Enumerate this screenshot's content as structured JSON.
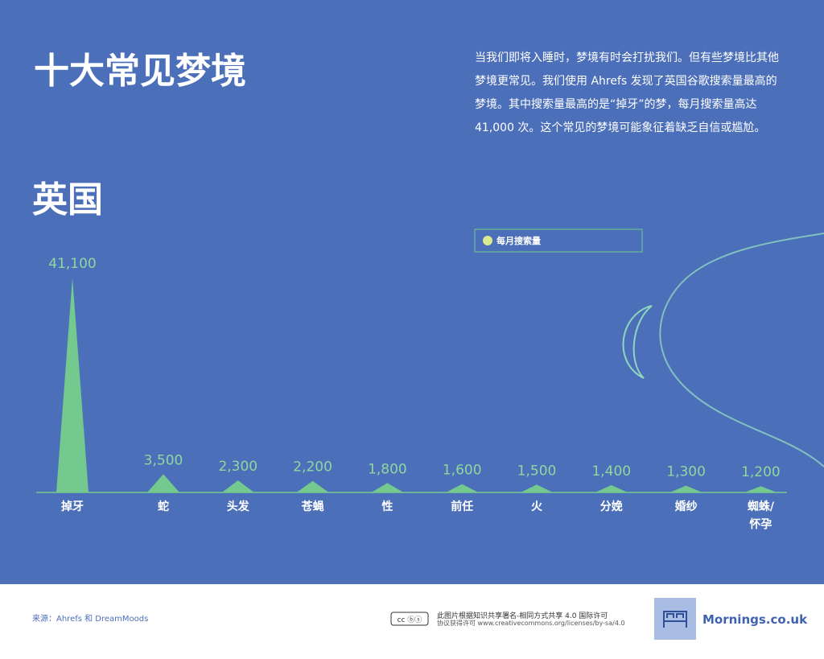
{
  "header": {
    "title": "十大常见梦境",
    "subtitle": "英国",
    "description": "当我们即将入睡时，梦境有时会打扰我们。但有些梦境比其他梦境更常见。我们使用 Ahrefs 发现了英国谷歌搜索量最高的梦境。其中搜索量最高的是“掉牙”的梦，每月搜索量高达 41,000 次。这个常见的梦境可能象征着缺乏自信或尴尬。"
  },
  "chart_data": {
    "type": "bar",
    "categories": [
      "掉牙",
      "蛇",
      "头发",
      "苍蝇",
      "性",
      "前任",
      "火",
      "分娩",
      "婚纱",
      "蜘蛛/怀孕"
    ],
    "series": [
      {
        "name": "每月搜索量",
        "color": "#74c98e",
        "values": [
          41100,
          3500,
          2300,
          2200,
          1800,
          1600,
          1500,
          1400,
          1300,
          1200
        ],
        "value_labels": [
          "41,100",
          "3,500",
          "2,300",
          "2,200",
          "1,800",
          "1,600",
          "1,500",
          "1,400",
          "1,300",
          "1,200"
        ]
      }
    ]
  },
  "footer": {
    "source": "来源：Ahrefs 和 DreamMoods",
    "license": [
      "此图片根据知识共享署名-相同方式共享 4.0 国际许可",
      "协议获得许可 www.creativecommons.org/licenses/by-sa/4.0"
    ],
    "brand": "Mornings.co.uk"
  }
}
